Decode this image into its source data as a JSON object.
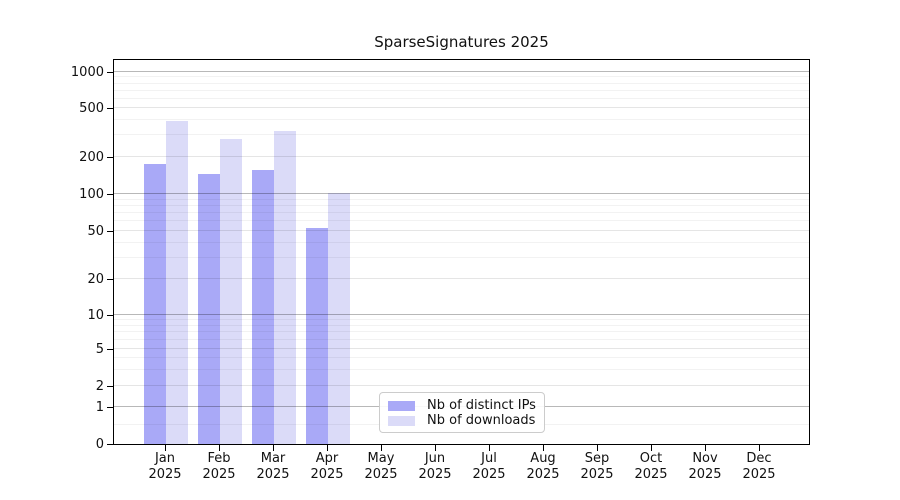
{
  "title": "SparseSignatures 2025",
  "legend": {
    "items": [
      {
        "label": "Nb of distinct IPs",
        "color": "#a9a9f7"
      },
      {
        "label": "Nb of downloads",
        "color": "#dbdbf8"
      }
    ]
  },
  "colors": {
    "bar_dark": "#a9a9f7",
    "bar_light": "#dbdbf8",
    "grid_decade": "#b8b8b8",
    "grid_mid": "#e6e6e6",
    "grid_minor": "#f2f2f2",
    "spine": "#000000"
  },
  "chart_data": {
    "type": "bar",
    "title": "SparseSignatures 2025",
    "categories": [
      "Jan",
      "Feb",
      "Mar",
      "Apr",
      "May",
      "Jun",
      "Jul",
      "Aug",
      "Sep",
      "Oct",
      "Nov",
      "Dec"
    ],
    "year_label": "2025",
    "series": [
      {
        "name": "Nb of distinct IPs",
        "color": "#a9a9f7",
        "values": [
          175,
          145,
          158,
          53,
          0,
          0,
          0,
          0,
          0,
          0,
          0,
          0
        ]
      },
      {
        "name": "Nb of downloads",
        "color": "#dbdbf8",
        "values": [
          390,
          280,
          325,
          102,
          0,
          0,
          0,
          0,
          0,
          0,
          0,
          0
        ]
      }
    ],
    "xlabel": "",
    "ylabel": "",
    "yscale": "symlog",
    "ylim": [
      0,
      1300
    ],
    "y_ticks": [
      0,
      1,
      2,
      5,
      10,
      20,
      50,
      100,
      200,
      500,
      1000
    ],
    "y_decade_ticks": [
      1,
      10,
      100,
      1000
    ],
    "y_minor_ticks": [
      0.5,
      3,
      4,
      6,
      7,
      8,
      9,
      30,
      40,
      60,
      70,
      80,
      90,
      300,
      400,
      600,
      700,
      800,
      900
    ],
    "grid": true,
    "legend_position": "lower center",
    "scale_anchors": [
      [
        0,
        0
      ],
      [
        1,
        37
      ],
      [
        2,
        58
      ],
      [
        5,
        95
      ],
      [
        10,
        129
      ],
      [
        20,
        165
      ],
      [
        50,
        213
      ],
      [
        100,
        250
      ],
      [
        200,
        287
      ],
      [
        500,
        336
      ],
      [
        1000,
        372
      ]
    ]
  }
}
